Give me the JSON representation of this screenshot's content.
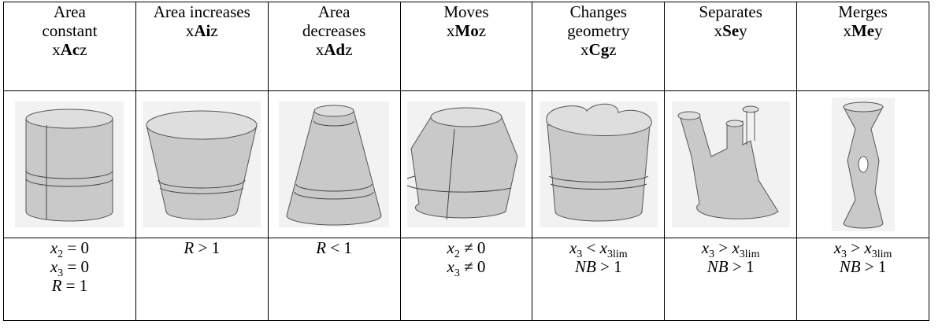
{
  "table": {
    "columns": [
      {
        "label_lines": [
          "Area",
          "constant"
        ],
        "code": {
          "prefix": "x",
          "bold": "Ac",
          "suffix": "z"
        },
        "conditions": [
          [
            {
              "v": "x",
              "sub": "2"
            },
            {
              "op": " = 0"
            }
          ],
          [
            {
              "v": "x",
              "sub": "3"
            },
            {
              "op": " = 0"
            }
          ],
          [
            {
              "v": "R"
            },
            {
              "op": " = 1"
            }
          ]
        ]
      },
      {
        "label_lines": [
          "Area increases"
        ],
        "code": {
          "prefix": "x",
          "bold": "Ai",
          "suffix": "z"
        },
        "conditions": [
          [
            {
              "v": "R"
            },
            {
              "op": " > 1"
            }
          ]
        ]
      },
      {
        "label_lines": [
          "Area",
          "decreases"
        ],
        "code": {
          "prefix": "x",
          "bold": "Ad",
          "suffix": "z"
        },
        "conditions": [
          [
            {
              "v": "R"
            },
            {
              "op": " < 1"
            }
          ]
        ]
      },
      {
        "label_lines": [
          "Moves"
        ],
        "code": {
          "prefix": "x",
          "bold": "Mo",
          "suffix": "z"
        },
        "conditions": [
          [
            {
              "v": "x",
              "sub": "2"
            },
            {
              "op": " ≠ 0"
            }
          ],
          [
            {
              "v": "x",
              "sub": "3"
            },
            {
              "op": " ≠ 0"
            }
          ]
        ]
      },
      {
        "label_lines": [
          "Changes",
          "geometry"
        ],
        "code": {
          "prefix": "x",
          "bold": "Cg",
          "suffix": "z"
        },
        "conditions": [
          [
            {
              "v": "x",
              "sub": "3"
            },
            {
              "op": " < "
            },
            {
              "v": "x",
              "sub": "3lim"
            }
          ],
          [
            {
              "v": "NB"
            },
            {
              "op": " > 1"
            }
          ]
        ]
      },
      {
        "label_lines": [
          "Separates"
        ],
        "code": {
          "prefix": "x",
          "bold": "Se",
          "suffix": "y"
        },
        "conditions": [
          [
            {
              "v": "x",
              "sub": "3"
            },
            {
              "op": " > "
            },
            {
              "v": "x",
              "sub": "3lim"
            }
          ],
          [
            {
              "v": "NB"
            },
            {
              "op": " > 1"
            }
          ]
        ]
      },
      {
        "label_lines": [
          "Merges"
        ],
        "code": {
          "prefix": "x",
          "bold": "Me",
          "suffix": "y"
        },
        "conditions": [
          [
            {
              "v": "x",
              "sub": "3"
            },
            {
              "op": " > "
            },
            {
              "v": "x",
              "sub": "3lim"
            }
          ],
          [
            {
              "v": "NB"
            },
            {
              "op": " > 1"
            }
          ]
        ]
      }
    ]
  }
}
